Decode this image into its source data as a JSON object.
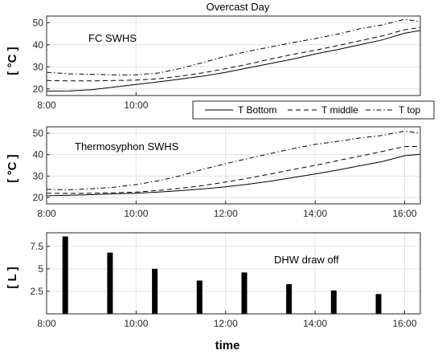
{
  "chart_data": [
    {
      "type": "line",
      "title": "Overcast Day",
      "annotation": "FC SWHS",
      "ylabel": "[ °C ]",
      "xlabel": "",
      "x_ticks": [
        "8:00",
        "10:00"
      ],
      "xlim": [
        8.0,
        16.35
      ],
      "ylim": [
        17,
        53
      ],
      "y_ticks": [
        20,
        30,
        40,
        50
      ],
      "grid": true,
      "x": [
        8.0,
        8.5,
        9.0,
        9.5,
        10.0,
        10.5,
        11.0,
        11.5,
        12.0,
        12.5,
        13.0,
        13.5,
        14.0,
        14.5,
        15.0,
        15.5,
        16.0,
        16.35
      ],
      "series": [
        {
          "name": "T Bottom",
          "dash": "solid",
          "values": [
            19.0,
            19.1,
            19.6,
            20.8,
            22.0,
            23.2,
            24.5,
            25.8,
            27.5,
            29.5,
            31.5,
            33.5,
            35.8,
            37.8,
            40.0,
            42.2,
            45.2,
            46.5
          ]
        },
        {
          "name": "T middle",
          "dash": "dash",
          "values": [
            23.8,
            23.6,
            23.6,
            23.8,
            24.0,
            24.6,
            25.8,
            27.3,
            29.2,
            31.2,
            33.5,
            35.6,
            37.5,
            39.6,
            41.8,
            44.0,
            46.8,
            47.8
          ]
        },
        {
          "name": "T top",
          "dash": "dashdot",
          "values": [
            27.5,
            26.8,
            26.6,
            26.4,
            26.4,
            27.2,
            29.3,
            32.0,
            34.8,
            37.0,
            39.0,
            41.0,
            42.8,
            44.8,
            47.2,
            49.0,
            51.5,
            50.5
          ]
        }
      ],
      "legend": {
        "placement": "below-right",
        "entries": [
          "T Bottom",
          "T middle",
          "T top"
        ]
      }
    },
    {
      "type": "line",
      "title": "",
      "annotation": "Thermosyphon SWHS",
      "ylabel": "[ °C ]",
      "xlabel": "",
      "x_ticks": [
        "8:00",
        "10:00",
        "12:00",
        "14:00",
        "16:00"
      ],
      "xlim": [
        8.0,
        16.35
      ],
      "ylim": [
        17,
        53
      ],
      "y_ticks": [
        20,
        30,
        40,
        50
      ],
      "grid": true,
      "x": [
        8.0,
        8.5,
        9.0,
        9.5,
        10.0,
        10.5,
        11.0,
        11.5,
        12.0,
        12.5,
        13.0,
        13.5,
        14.0,
        14.5,
        15.0,
        15.5,
        16.0,
        16.35
      ],
      "series": [
        {
          "name": "T Bottom",
          "dash": "solid",
          "values": [
            20.8,
            21.0,
            21.3,
            21.7,
            22.0,
            22.5,
            23.2,
            24.0,
            25.0,
            26.2,
            27.6,
            29.3,
            31.0,
            32.8,
            34.8,
            36.8,
            39.5,
            40.2
          ]
        },
        {
          "name": "T middle",
          "dash": "dash",
          "values": [
            22.0,
            21.9,
            22.0,
            22.2,
            22.5,
            23.3,
            24.3,
            25.6,
            27.2,
            29.0,
            31.0,
            33.0,
            35.0,
            37.2,
            39.3,
            41.5,
            43.8,
            43.8
          ]
        },
        {
          "name": "T top",
          "dash": "dashdot",
          "values": [
            23.8,
            23.6,
            24.0,
            24.8,
            26.0,
            27.8,
            30.2,
            33.2,
            35.8,
            38.2,
            40.5,
            42.8,
            44.8,
            46.2,
            47.8,
            49.0,
            51.0,
            50.0
          ]
        }
      ]
    },
    {
      "type": "bar",
      "title": "",
      "annotation": "DHW draw off",
      "ylabel": "[ L ]",
      "xlabel": "time",
      "x_ticks": [
        "8:00",
        "10:00",
        "12:00",
        "14:00",
        "16:00"
      ],
      "xlim": [
        8.0,
        16.35
      ],
      "ylim": [
        0,
        9
      ],
      "y_ticks": [
        "2.5",
        "5",
        "7.5"
      ],
      "grid": true,
      "x": [
        "08:25",
        "09:25",
        "10:25",
        "11:25",
        "12:25",
        "13:25",
        "14:25",
        "15:25"
      ],
      "values": [
        8.6,
        6.8,
        5.0,
        3.7,
        4.6,
        3.3,
        2.6,
        2.2
      ]
    }
  ]
}
